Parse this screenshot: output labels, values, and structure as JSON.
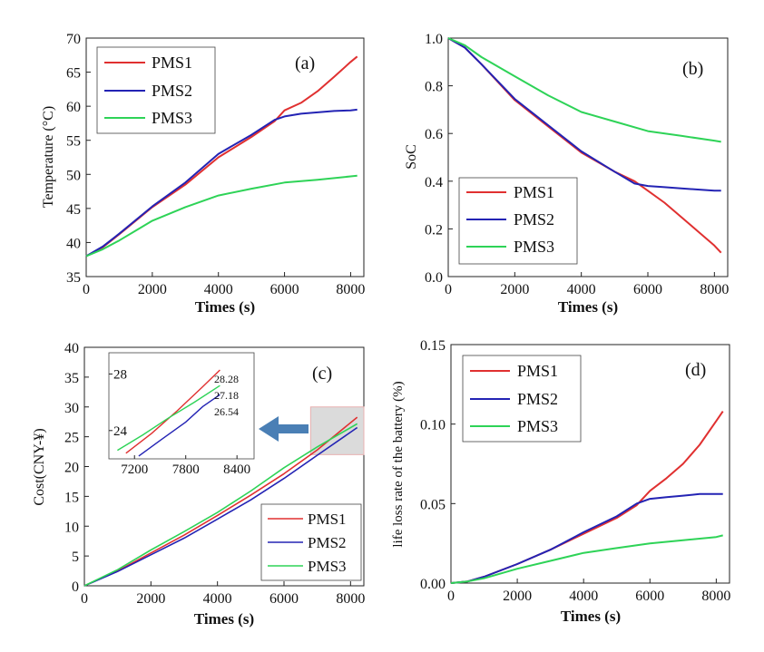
{
  "figure": "Four-panel comparison of PMS1, PMS2, PMS3",
  "colors": {
    "PMS1": "#e03030",
    "PMS2": "#2323b4",
    "PMS3": "#2ed357",
    "inset_box": "#d5d5d5",
    "arrow": "#4a7fb5"
  },
  "chart_data": [
    {
      "id": "a",
      "type": "line",
      "panel_label": "(a)",
      "title": "",
      "xlabel": "Times (s)",
      "ylabel": "Temperature (°C)",
      "xlim": [
        0,
        8400
      ],
      "ylim": [
        35,
        70
      ],
      "xticks": [
        0,
        2000,
        4000,
        6000,
        8000
      ],
      "yticks": [
        35,
        40,
        45,
        50,
        55,
        60,
        65,
        70
      ],
      "legend": "top-left",
      "series": [
        {
          "name": "PMS1",
          "x": [
            0,
            500,
            1000,
            2000,
            3000,
            4000,
            5000,
            5700,
            6000,
            6500,
            7000,
            7500,
            8000,
            8200
          ],
          "y": [
            38,
            39.3,
            41.2,
            45.2,
            48.5,
            52.5,
            55.5,
            57.8,
            59.4,
            60.5,
            62.2,
            64.3,
            66.5,
            67.3
          ]
        },
        {
          "name": "PMS2",
          "x": [
            0,
            500,
            1000,
            2000,
            3000,
            4000,
            5000,
            5700,
            6000,
            6500,
            7000,
            7500,
            8000,
            8200
          ],
          "y": [
            38,
            39.4,
            41.3,
            45.3,
            48.8,
            53.0,
            55.8,
            58.0,
            58.5,
            58.9,
            59.1,
            59.3,
            59.4,
            59.5
          ]
        },
        {
          "name": "PMS3",
          "x": [
            0,
            500,
            1000,
            2000,
            3000,
            4000,
            5000,
            6000,
            7000,
            8000,
            8200
          ],
          "y": [
            38,
            39.0,
            40.3,
            43.2,
            45.2,
            46.9,
            47.9,
            48.8,
            49.2,
            49.7,
            49.8
          ]
        }
      ]
    },
    {
      "id": "b",
      "type": "line",
      "panel_label": "(b)",
      "title": "",
      "xlabel": "Times (s)",
      "ylabel": "SoC",
      "xlim": [
        0,
        8400
      ],
      "ylim": [
        0.0,
        1.0
      ],
      "xticks": [
        0,
        2000,
        4000,
        6000,
        8000
      ],
      "yticks": [
        0.0,
        0.2,
        0.4,
        0.6,
        0.8,
        1.0
      ],
      "ytick_labels": [
        "0.0",
        "0.2",
        "0.4",
        "0.6",
        "0.8",
        "1.0"
      ],
      "legend": "bottom-left",
      "series": [
        {
          "name": "PMS1",
          "x": [
            0,
            500,
            1000,
            2000,
            3000,
            4000,
            5000,
            5600,
            6000,
            6500,
            7000,
            7500,
            8000,
            8200
          ],
          "y": [
            1.0,
            0.96,
            0.89,
            0.74,
            0.63,
            0.52,
            0.44,
            0.4,
            0.36,
            0.31,
            0.25,
            0.19,
            0.13,
            0.1
          ]
        },
        {
          "name": "PMS2",
          "x": [
            0,
            500,
            1000,
            2000,
            3000,
            4000,
            5000,
            5600,
            6000,
            6500,
            7000,
            7500,
            8000,
            8200
          ],
          "y": [
            1.0,
            0.96,
            0.89,
            0.745,
            0.635,
            0.525,
            0.44,
            0.39,
            0.38,
            0.375,
            0.37,
            0.365,
            0.36,
            0.36
          ]
        },
        {
          "name": "PMS3",
          "x": [
            0,
            500,
            1000,
            2000,
            3000,
            4000,
            5000,
            6000,
            7000,
            8000,
            8200
          ],
          "y": [
            1.0,
            0.97,
            0.92,
            0.84,
            0.76,
            0.69,
            0.65,
            0.61,
            0.59,
            0.57,
            0.565
          ]
        }
      ]
    },
    {
      "id": "c",
      "type": "line",
      "panel_label": "(c)",
      "title": "",
      "xlabel": "Times (s)",
      "ylabel": "Cost(CNY-¥)",
      "xlim": [
        0,
        8400
      ],
      "ylim": [
        0,
        40
      ],
      "xticks": [
        0,
        2000,
        4000,
        6000,
        8000
      ],
      "yticks": [
        0,
        5,
        10,
        15,
        20,
        25,
        30,
        35,
        40
      ],
      "legend": "bottom-right",
      "series": [
        {
          "name": "PMS1",
          "x": [
            0,
            1000,
            2000,
            3000,
            4000,
            5000,
            6000,
            7000,
            8200
          ],
          "y": [
            0,
            2.5,
            5.5,
            8.5,
            11.8,
            15.2,
            18.8,
            22.8,
            28.28
          ]
        },
        {
          "name": "PMS2",
          "x": [
            0,
            1000,
            2000,
            3000,
            4000,
            5000,
            6000,
            7000,
            8200
          ],
          "y": [
            0,
            2.4,
            5.2,
            8.0,
            11.2,
            14.4,
            18.0,
            21.9,
            26.54
          ]
        },
        {
          "name": "PMS3",
          "x": [
            0,
            1000,
            2000,
            3000,
            4000,
            5000,
            6000,
            7000,
            8200
          ],
          "y": [
            0,
            2.7,
            6.0,
            9.1,
            12.3,
            15.9,
            19.8,
            23.3,
            27.18
          ]
        }
      ],
      "highlight_region": {
        "x": [
          6800,
          8400
        ],
        "y": [
          22,
          30
        ]
      },
      "inset": {
        "xlim": [
          6900,
          8600
        ],
        "ylim": [
          22,
          29.5
        ],
        "xticks": [
          7200,
          7800,
          8400
        ],
        "yticks": [
          24,
          28
        ],
        "end_labels": [
          "28.28",
          "27.18",
          "26.54"
        ],
        "series": [
          {
            "name": "PMS1",
            "x": [
              7100,
              7400,
              7700,
              8000,
              8200
            ],
            "y": [
              22.4,
              23.8,
              25.4,
              27.1,
              28.28
            ]
          },
          {
            "name": "PMS2",
            "x": [
              7250,
              7500,
              7800,
              8000,
              8200
            ],
            "y": [
              22.2,
              23.3,
              24.6,
              25.7,
              26.54
            ]
          },
          {
            "name": "PMS3",
            "x": [
              7000,
              7300,
              7600,
              7900,
              8200
            ],
            "y": [
              22.6,
              23.7,
              24.9,
              26.0,
              27.18
            ]
          }
        ]
      }
    },
    {
      "id": "d",
      "type": "line",
      "panel_label": "(d)",
      "title": "",
      "xlabel": "Times (s)",
      "ylabel": "life loss rate of the battery (%)",
      "xlim": [
        0,
        8400
      ],
      "ylim": [
        0.0,
        0.15
      ],
      "xticks": [
        0,
        2000,
        4000,
        6000,
        8000
      ],
      "yticks": [
        0.0,
        0.05,
        0.1,
        0.15
      ],
      "ytick_labels": [
        "0.00",
        "0.05",
        "0.10",
        "0.15"
      ],
      "legend": "top-left",
      "series": [
        {
          "name": "PMS1",
          "x": [
            0,
            500,
            1000,
            2000,
            3000,
            4000,
            5000,
            5600,
            6000,
            6500,
            7000,
            7500,
            8000,
            8200
          ],
          "y": [
            0,
            0.001,
            0.004,
            0.012,
            0.021,
            0.031,
            0.041,
            0.049,
            0.058,
            0.066,
            0.075,
            0.087,
            0.102,
            0.108
          ]
        },
        {
          "name": "PMS2",
          "x": [
            0,
            500,
            1000,
            2000,
            3000,
            4000,
            5000,
            5600,
            6000,
            6500,
            7000,
            7500,
            8000,
            8200
          ],
          "y": [
            0,
            0.001,
            0.004,
            0.012,
            0.021,
            0.032,
            0.042,
            0.05,
            0.053,
            0.054,
            0.055,
            0.056,
            0.056,
            0.056
          ]
        },
        {
          "name": "PMS3",
          "x": [
            0,
            500,
            1000,
            2000,
            3000,
            4000,
            5000,
            6000,
            7000,
            8000,
            8200
          ],
          "y": [
            0,
            0.001,
            0.003,
            0.009,
            0.014,
            0.019,
            0.022,
            0.025,
            0.027,
            0.029,
            0.03
          ]
        }
      ]
    }
  ]
}
